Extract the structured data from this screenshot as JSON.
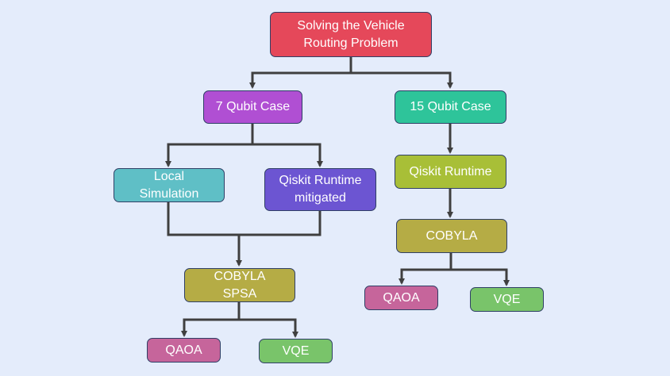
{
  "nodes": {
    "root": {
      "label": "Solving the Vehicle\nRouting Problem",
      "color": "#e5485a"
    },
    "case7": {
      "label": "7 Qubit Case",
      "color": "#b04fd3"
    },
    "case15": {
      "label": "15 Qubit Case",
      "color": "#2ec49a"
    },
    "local_sim": {
      "label": "Local\nSimulation",
      "color": "#5fbfc6"
    },
    "runtime_mitigated": {
      "label": "Qiskit Runtime\nmitigated",
      "color": "#6c55d2"
    },
    "runtime_15": {
      "label": "Qiskit Runtime",
      "color": "#a8bf37"
    },
    "cobyla_spsa": {
      "label": "COBYLA\nSPSA",
      "color": "#b5ac45"
    },
    "cobyla_15": {
      "label": "COBYLA",
      "color": "#b5ac45"
    },
    "qaoa_7": {
      "label": "QAOA",
      "color": "#c6659b"
    },
    "vqe_7": {
      "label": "VQE",
      "color": "#79c46a"
    },
    "qaoa_15": {
      "label": "QAOA",
      "color": "#c6659b"
    },
    "vqe_15": {
      "label": "VQE",
      "color": "#79c46a"
    }
  },
  "edges": [
    [
      "root",
      "case7"
    ],
    [
      "root",
      "case15"
    ],
    [
      "case7",
      "local_sim"
    ],
    [
      "case7",
      "runtime_mitigated"
    ],
    [
      "local_sim",
      "cobyla_spsa"
    ],
    [
      "runtime_mitigated",
      "cobyla_spsa"
    ],
    [
      "cobyla_spsa",
      "qaoa_7"
    ],
    [
      "cobyla_spsa",
      "vqe_7"
    ],
    [
      "case15",
      "runtime_15"
    ],
    [
      "runtime_15",
      "cobyla_15"
    ],
    [
      "cobyla_15",
      "qaoa_15"
    ],
    [
      "cobyla_15",
      "vqe_15"
    ]
  ],
  "colors": {
    "connector": "#3f3f3f",
    "background": "#e4ecfb",
    "border": "#2f3f66"
  }
}
